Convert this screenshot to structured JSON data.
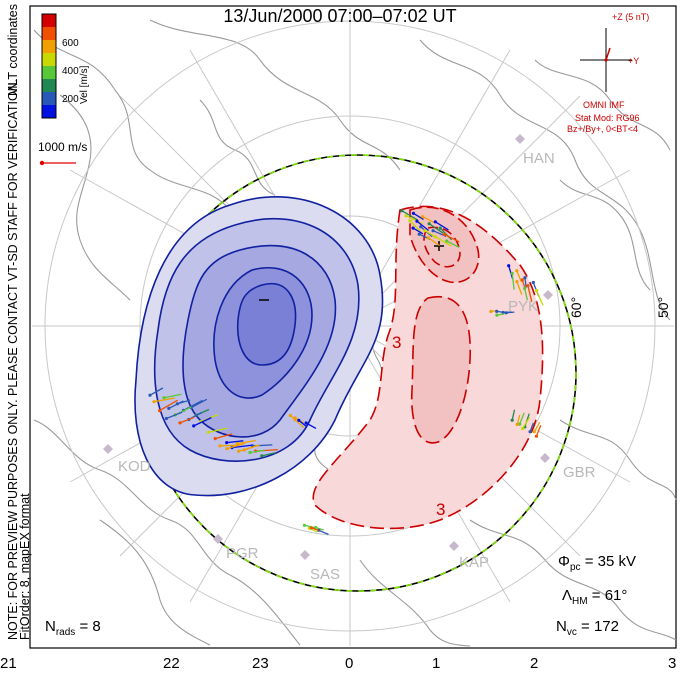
{
  "header": {
    "title": "13/Jun/2000 07:00–07:02 UT"
  },
  "side_notes": {
    "preview": "NOTE: FOR PREVIEW PURPOSES ONLY. PLEASE CONTACT VT-SD STAFF FOR VERIFICATION.",
    "fit_order": "FitOrder: 8, mapEX format",
    "coords": "MLT coordinates"
  },
  "colorbar": {
    "unit_label": "Vel [m/s]",
    "ticks": [
      "600",
      "400",
      "200"
    ],
    "colors": [
      "#d40000",
      "#f05000",
      "#f0a000",
      "#c8d800",
      "#58c838",
      "#208850",
      "#2858b8",
      "#0010e0"
    ]
  },
  "vector_scale": {
    "label": "1000 m/s",
    "color": "#e00000"
  },
  "imf": {
    "bz_label": "+Z (5 nT)",
    "by_label": "+Y",
    "source": "OMNI IMF",
    "model": "Stat Mod: RG96",
    "condition": "Bz+/By+, 0<BT<4",
    "color": "#dd0000"
  },
  "stations": [
    "HAN",
    "PYK",
    "KOD",
    "GBR",
    "PGR",
    "SAS",
    "KAP"
  ],
  "latitude_labels": [
    "60°",
    "50°"
  ],
  "contour_markers": {
    "minus": "–",
    "plus": "+",
    "neg_value": "3",
    "pos_value": "3"
  },
  "mlt_hours": [
    "21",
    "22",
    "23",
    "0",
    "1",
    "2",
    "3"
  ],
  "stats": {
    "nrads_sym": "N",
    "nrads_sub": "rads",
    "nrads_val": "= 8",
    "phi_sym": "Φ",
    "phi_sub": "pc",
    "phi_val": "= 35 kV",
    "lhm_sym": "Λ",
    "lhm_sub": "HM",
    "lhm_val": "= 61°",
    "nvc_sym": "N",
    "nvc_sub": "vc",
    "nvc_val": "= 172"
  }
}
